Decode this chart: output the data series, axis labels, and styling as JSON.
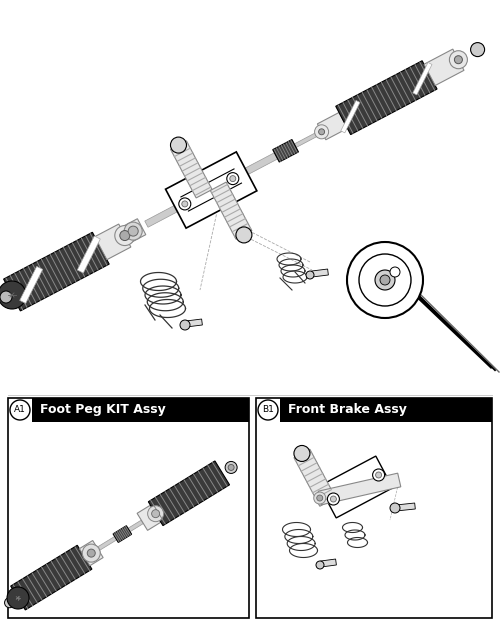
{
  "bg_color": "#ffffff",
  "panel_a_label": "A1",
  "panel_b_label": "B1",
  "panel_a_title": "Foot Peg KIT Assy",
  "panel_b_title": "Front Brake Assy",
  "fig_width": 5.0,
  "fig_height": 6.33,
  "dpi": 100,
  "dark_grip": "#3a3a3a",
  "light_cyl": "#e8e8e8",
  "rib_color": "#888888",
  "bracket_fc": "#f0f0f0",
  "line_color": "#000000",
  "fork_color": "#cccccc"
}
